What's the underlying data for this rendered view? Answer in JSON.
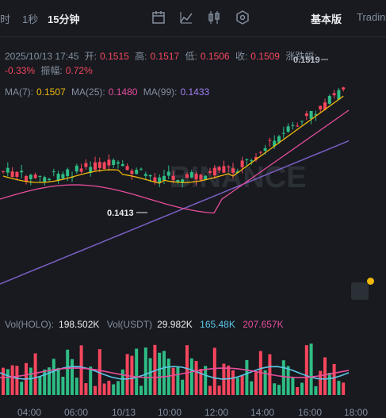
{
  "toolbar": {
    "intervals": [
      {
        "label": "时",
        "active": false
      },
      {
        "label": "1秒",
        "active": false
      },
      {
        "label": "15分钟",
        "active": true
      }
    ],
    "icons": [
      "calendar-icon",
      "indicator-icon",
      "candle-type-icon",
      "settings-icon"
    ],
    "basic_label": "基本版",
    "trading_label": "Tradin"
  },
  "info": {
    "datetime": "2025/10/13 17:45",
    "open_label": "开:",
    "open": "0.1515",
    "high_label": "高:",
    "high": "0.1517",
    "low_label": "低:",
    "low": "0.1506",
    "close_label": "收:",
    "close": "0.1509",
    "change_label": "涨跌幅:",
    "change": "-0.33%",
    "amp_label": "振幅:",
    "amp": "0.72%"
  },
  "ma": {
    "ma7_label": "MA(7):",
    "ma7": "0.1507",
    "ma25_label": "MA(25):",
    "ma25": "0.1480",
    "ma99_label": "MA(99):",
    "ma99": "0.1433"
  },
  "volume": {
    "holo_label": "Vol(HOLO):",
    "holo": "198.502K",
    "usdt_label": "Vol(USDT)",
    "usdt": "29.982K",
    "ma1": "165.48K",
    "ma2": "207.657K"
  },
  "chart_data": {
    "type": "candlestick",
    "high_annotation": "0.1519",
    "low_annotation": "0.1413",
    "watermark": "BINANCE",
    "x_ticks": [
      "04:00",
      "06:00",
      "10/13",
      "10:00",
      "12:00",
      "14:00",
      "16:00",
      "18:00"
    ],
    "colors": {
      "up": "#2ebd85",
      "down": "#f6465d",
      "ma7": "#f0b90b",
      "ma25": "#e94d9b",
      "ma99": "#7b5fc4",
      "vol_ma1": "#5bc8e8",
      "vol_ma2": "#e94d9b"
    }
  }
}
